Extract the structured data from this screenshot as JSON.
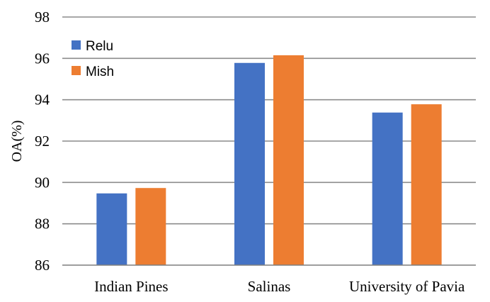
{
  "chart_data": {
    "type": "bar",
    "title": "",
    "xlabel": "",
    "ylabel": "OA(%)",
    "ylim": [
      86,
      98
    ],
    "yticks": [
      86,
      88,
      90,
      92,
      94,
      96,
      98
    ],
    "grid": true,
    "legend_position": "top-left",
    "categories": [
      "Indian Pines",
      "Salinas",
      "University of Pavia"
    ],
    "series": [
      {
        "name": "Relu",
        "color": "#4472c4",
        "values": [
          89.47,
          95.78,
          93.38
        ]
      },
      {
        "name": "Mish",
        "color": "#ed7d31",
        "values": [
          89.73,
          96.15,
          93.78
        ]
      }
    ]
  }
}
